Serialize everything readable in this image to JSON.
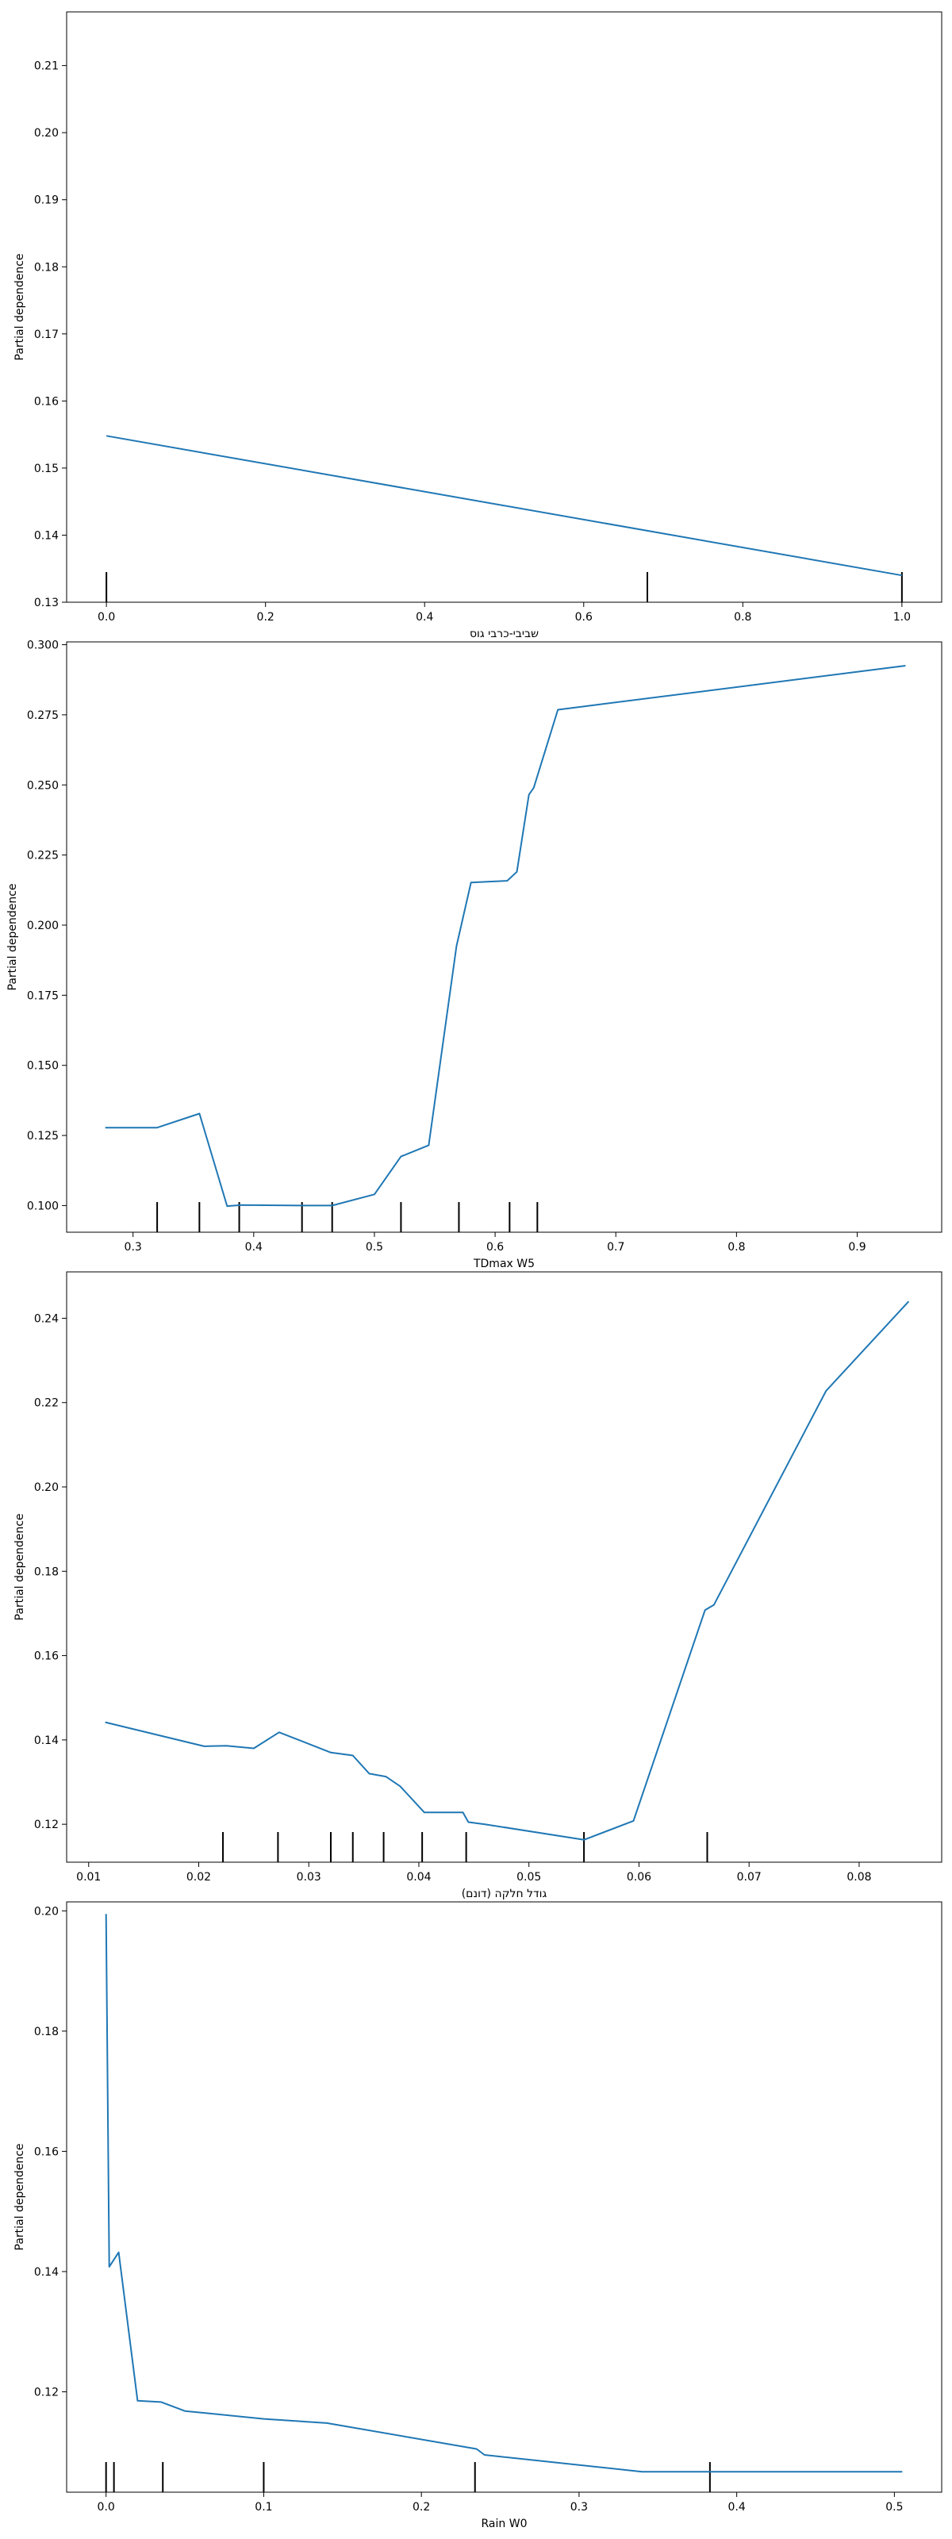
{
  "chart_data": [
    {
      "type": "line",
      "xlabel": "שביבי-כרבי גוס",
      "ylabel": "Partial dependence",
      "xlim": [
        -0.05,
        1.05
      ],
      "ylim": [
        0.13,
        0.218
      ],
      "xticks": [
        0.0,
        0.2,
        0.4,
        0.6,
        0.8,
        1.0
      ],
      "xtick_labels": [
        "0.0",
        "0.2",
        "0.4",
        "0.6",
        "0.8",
        "1.0"
      ],
      "yticks": [
        0.13,
        0.14,
        0.15,
        0.16,
        0.17,
        0.18,
        0.19,
        0.2,
        0.21
      ],
      "ytick_labels": [
        "0.13",
        "0.14",
        "0.15",
        "0.16",
        "0.17",
        "0.18",
        "0.19",
        "0.20",
        "0.21"
      ],
      "series": [
        {
          "x": [
            0.0,
            1.0
          ],
          "y": [
            0.1548,
            0.134
          ]
        }
      ],
      "rug": [
        0.0,
        0.68,
        1.0
      ],
      "line_color": "#1f77b4",
      "grid": false
    },
    {
      "type": "line",
      "xlabel": "TDmax W5",
      "ylabel": "Partial dependence",
      "xlim": [
        0.245,
        0.97
      ],
      "ylim": [
        0.0905,
        0.301
      ],
      "xticks": [
        0.3,
        0.4,
        0.5,
        0.6,
        0.7,
        0.8,
        0.9
      ],
      "xtick_labels": [
        "0.3",
        "0.4",
        "0.5",
        "0.6",
        "0.7",
        "0.8",
        "0.9"
      ],
      "yticks": [
        0.1,
        0.125,
        0.15,
        0.175,
        0.2,
        0.225,
        0.25,
        0.275,
        0.3
      ],
      "ytick_labels": [
        "0.100",
        "0.125",
        "0.150",
        "0.175",
        "0.200",
        "0.225",
        "0.250",
        "0.275",
        "0.300"
      ],
      "series": [
        {
          "x": [
            0.277,
            0.32,
            0.355,
            0.378,
            0.39,
            0.44,
            0.465,
            0.5,
            0.522,
            0.545,
            0.568,
            0.58,
            0.61,
            0.618,
            0.628,
            0.632,
            0.652,
            0.94
          ],
          "y": [
            0.1278,
            0.1278,
            0.1328,
            0.0998,
            0.1002,
            0.1,
            0.1,
            0.104,
            0.1175,
            0.1215,
            0.1925,
            0.2152,
            0.2158,
            0.219,
            0.2465,
            0.249,
            0.2768,
            0.2925
          ]
        }
      ],
      "rug": [
        0.32,
        0.355,
        0.388,
        0.44,
        0.465,
        0.522,
        0.57,
        0.612,
        0.635
      ],
      "line_color": "#1f77b4",
      "grid": false
    },
    {
      "type": "line",
      "xlabel": "גודל חלקה (דונם)",
      "ylabel": "Partial dependence",
      "xlim": [
        0.008,
        0.0875
      ],
      "ylim": [
        0.111,
        0.251
      ],
      "xticks": [
        0.01,
        0.02,
        0.03,
        0.04,
        0.05,
        0.06,
        0.07,
        0.08
      ],
      "xtick_labels": [
        "0.01",
        "0.02",
        "0.03",
        "0.04",
        "0.05",
        "0.06",
        "0.07",
        "0.08"
      ],
      "yticks": [
        0.12,
        0.14,
        0.16,
        0.18,
        0.2,
        0.22,
        0.24
      ],
      "ytick_labels": [
        "0.12",
        "0.14",
        "0.16",
        "0.18",
        "0.20",
        "0.22",
        "0.24"
      ],
      "series": [
        {
          "x": [
            0.0115,
            0.0205,
            0.0225,
            0.025,
            0.0273,
            0.032,
            0.034,
            0.0355,
            0.037,
            0.0383,
            0.0405,
            0.044,
            0.0445,
            0.046,
            0.055,
            0.0595,
            0.066,
            0.0668,
            0.077,
            0.0845
          ],
          "y": [
            0.1442,
            0.1385,
            0.1386,
            0.138,
            0.1418,
            0.137,
            0.1363,
            0.132,
            0.1313,
            0.129,
            0.1228,
            0.1228,
            0.1205,
            0.12,
            0.1163,
            0.1208,
            0.1708,
            0.172,
            0.2228,
            0.244
          ]
        }
      ],
      "rug": [
        0.0222,
        0.0272,
        0.032,
        0.034,
        0.0368,
        0.0403,
        0.0443,
        0.055,
        0.0662
      ],
      "line_color": "#1f77b4",
      "grid": false
    },
    {
      "type": "line",
      "xlabel": "Rain W0",
      "ylabel": "Partial dependence",
      "xlim": [
        -0.025,
        0.53
      ],
      "ylim": [
        0.1033,
        0.2015
      ],
      "xticks": [
        0.0,
        0.1,
        0.2,
        0.3,
        0.4,
        0.5
      ],
      "xtick_labels": [
        "0.0",
        "0.1",
        "0.2",
        "0.3",
        "0.4",
        "0.5"
      ],
      "yticks": [
        0.12,
        0.14,
        0.16,
        0.18,
        0.2
      ],
      "ytick_labels": [
        "0.12",
        "0.14",
        "0.16",
        "0.18",
        "0.20"
      ],
      "series": [
        {
          "x": [
            0.0,
            0.002,
            0.008,
            0.02,
            0.035,
            0.05,
            0.1,
            0.14,
            0.235,
            0.24,
            0.34,
            0.38,
            0.505
          ],
          "y": [
            0.1995,
            0.1408,
            0.1432,
            0.1185,
            0.1183,
            0.1168,
            0.1155,
            0.1148,
            0.1105,
            0.1095,
            0.1067,
            0.1067,
            0.1067
          ]
        }
      ],
      "rug": [
        0.0,
        0.005,
        0.036,
        0.1,
        0.234,
        0.383
      ],
      "line_color": "#1f77b4",
      "grid": false
    }
  ]
}
